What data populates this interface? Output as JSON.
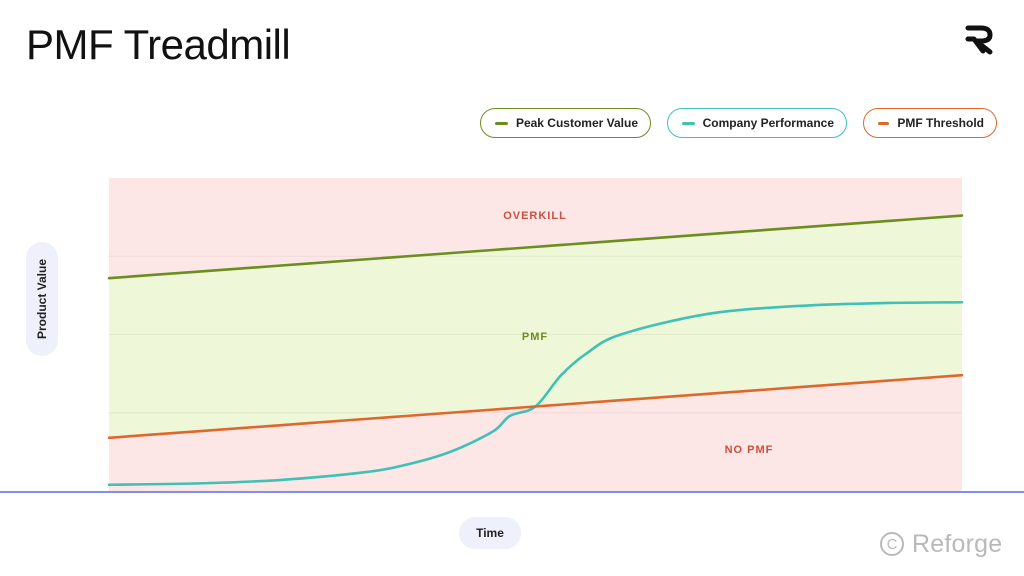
{
  "title": "PMF Treadmill",
  "brand": {
    "watermark_text": "Reforge",
    "logo_icon": "reforge-logo-icon",
    "copyright_icon": "copyright-icon"
  },
  "colors": {
    "peak": "#6b8e1e",
    "performance": "#40c0b6",
    "threshold": "#e0672b",
    "zone_pink": "#fde6e6",
    "zone_green": "#eef7d8",
    "zone_label_red": "#c9503f",
    "zone_label_green": "#6b8e1e",
    "baseline": "#7e8ef3"
  },
  "chart_data": {
    "type": "line",
    "title": "PMF Treadmill",
    "xlabel": "Time",
    "ylabel": "Product Value",
    "xlim": [
      0,
      1
    ],
    "ylim": [
      0,
      100
    ],
    "grid": true,
    "legend_position": "top-right",
    "x": [
      0,
      0.1,
      0.2,
      0.3,
      0.35,
      0.4,
      0.45,
      0.47,
      0.5,
      0.53,
      0.56,
      0.6,
      0.7,
      0.8,
      0.9,
      1.0
    ],
    "series": [
      {
        "name": "Peak Customer Value",
        "color": "#6b8e1e",
        "values": [
          68,
          70,
          72,
          74,
          75,
          76,
          77,
          77.4,
          78,
          78.6,
          79.2,
          80,
          82,
          84,
          86,
          88
        ]
      },
      {
        "name": "Company Performance",
        "color": "#40c0b6",
        "values": [
          2,
          2.4,
          3.5,
          6,
          8.5,
          12.5,
          19,
          24,
          27,
          37,
          44,
          50,
          56.5,
          59,
          60,
          60.3
        ]
      },
      {
        "name": "PMF Threshold",
        "color": "#e0672b",
        "values": [
          17,
          19,
          21,
          23,
          24,
          25,
          26,
          26.4,
          27,
          27.6,
          28.2,
          29,
          31,
          33,
          35,
          37
        ]
      }
    ],
    "zones": [
      {
        "label": "OVERKILL",
        "position": "top"
      },
      {
        "label": "PMF",
        "position": "middle"
      },
      {
        "label": "NO PMF",
        "position": "bottom-right"
      }
    ]
  }
}
